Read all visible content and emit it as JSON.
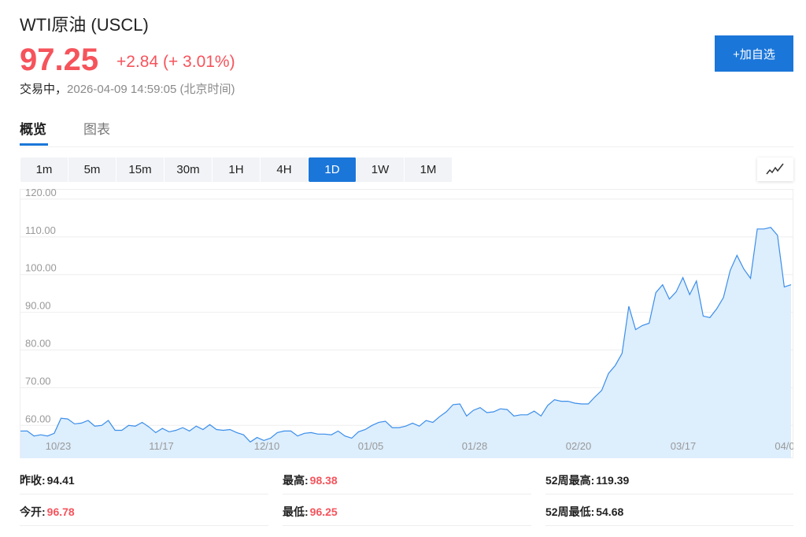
{
  "header": {
    "title": "WTI原油 (USCL)",
    "price": "97.25",
    "change": "+2.84 (+ 3.01%)",
    "status": "交易中，",
    "timestamp": "2026-04-09 14:59:05 (北京时间)",
    "add_button": "+加自选"
  },
  "tabs": [
    {
      "label": "概览",
      "active": true
    },
    {
      "label": "图表",
      "active": false
    }
  ],
  "periods": [
    {
      "label": "1m"
    },
    {
      "label": "5m"
    },
    {
      "label": "15m"
    },
    {
      "label": "30m"
    },
    {
      "label": "1H"
    },
    {
      "label": "4H"
    },
    {
      "label": "1D",
      "active": true
    },
    {
      "label": "1W"
    },
    {
      "label": "1M"
    }
  ],
  "chart_type_icon": "line-chart-icon",
  "colors": {
    "accent": "#1b76d9",
    "up": "#f6535b",
    "line": "#3b8eea",
    "fill": "#ddeefd"
  },
  "chart_data": {
    "type": "area",
    "ylim": [
      51.7,
      122.7
    ],
    "yticks": [
      "60.00",
      "70.00",
      "80.00",
      "90.00",
      "100.00",
      "110.00",
      "120.00"
    ],
    "xticks": [
      "10/23",
      "11/17",
      "12/10",
      "01/05",
      "01/28",
      "02/20",
      "03/17",
      "04/0"
    ],
    "grid": true,
    "values": [
      58.5,
      58.5,
      57.2,
      57.5,
      57.2,
      57.9,
      61.9,
      61.7,
      60.4,
      60.6,
      61.3,
      59.8,
      60.0,
      61.3,
      58.7,
      58.7,
      60.0,
      59.8,
      60.8,
      59.6,
      58.1,
      59.2,
      58.3,
      58.7,
      59.4,
      58.5,
      59.8,
      58.9,
      60.2,
      58.9,
      58.7,
      58.9,
      58.1,
      57.5,
      55.6,
      56.8,
      56.0,
      56.6,
      58.1,
      58.5,
      58.5,
      57.2,
      57.9,
      58.1,
      57.7,
      57.7,
      57.5,
      58.5,
      57.2,
      56.6,
      58.3,
      58.9,
      60.0,
      60.8,
      61.1,
      59.4,
      59.4,
      59.8,
      60.6,
      59.8,
      61.3,
      60.8,
      62.3,
      63.6,
      65.5,
      65.7,
      62.5,
      64.0,
      64.7,
      63.4,
      63.6,
      64.4,
      64.2,
      62.5,
      62.8,
      62.8,
      63.8,
      62.5,
      65.3,
      66.8,
      66.4,
      66.4,
      65.9,
      65.7,
      65.7,
      67.6,
      69.3,
      73.8,
      75.9,
      79.1,
      91.6,
      85.4,
      86.5,
      87.1,
      95.2,
      97.3,
      93.5,
      95.4,
      99.2,
      94.7,
      98.3,
      89.0,
      88.6,
      90.9,
      93.9,
      101.1,
      105.1,
      101.5,
      99.0,
      112.1,
      112.1,
      112.5,
      110.4,
      96.7,
      97.3
    ]
  },
  "stats": [
    {
      "label": "昨收:",
      "value": "94.41",
      "red": false
    },
    {
      "label": "最高:",
      "value": "98.38",
      "red": true
    },
    {
      "label": "52周最高:",
      "value": "119.39",
      "red": false
    },
    {
      "label": "今开:",
      "value": "96.78",
      "red": true
    },
    {
      "label": "最低:",
      "value": "96.25",
      "red": true
    },
    {
      "label": "52周最低:",
      "value": "54.68",
      "red": false
    }
  ]
}
